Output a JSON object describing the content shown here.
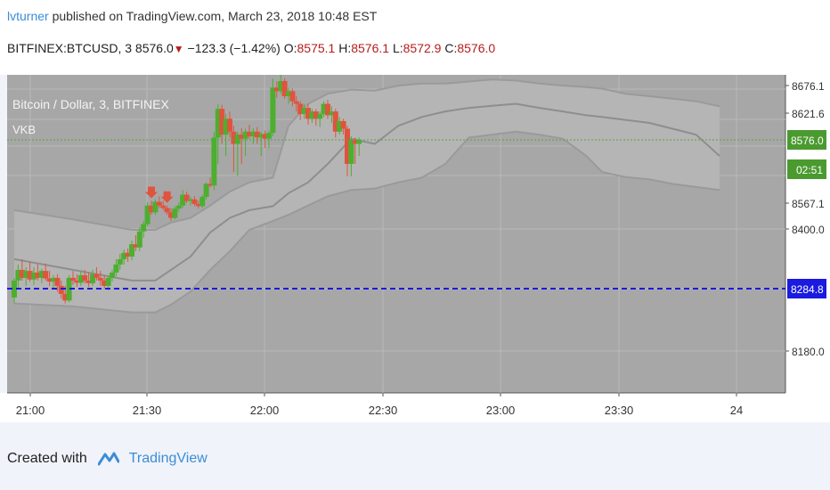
{
  "header": {
    "author": "lvturner",
    "published_text": "published on TradingView.com, March 23, 2018 10:48 EST",
    "symbol": "BITFINEX:BTCUSD, 3",
    "last": "8576.0",
    "change": "−123.3 (−1.42%)",
    "o_label": "O:",
    "o_value": "8575.1",
    "h_label": "H:",
    "h_value": "8576.1",
    "l_label": "L:",
    "l_value": "8572.9",
    "c_label": "C:",
    "c_value": "8576.0"
  },
  "footer": {
    "created_with": "Created with",
    "brand": "TradingView"
  },
  "colors": {
    "up": "#4caf2f",
    "down": "#e0533e",
    "plot_bg": "#a7a7a7",
    "band": "#b5b5b5",
    "blue_line": "#1a1ae0",
    "green_line": "#52a83a"
  },
  "chart_data": {
    "type": "candlestick",
    "title": "Bitcoin / Dollar, 3, BITFINEX",
    "indicator": "VKB",
    "x_ticks": [
      "21:00",
      "21:30",
      "22:00",
      "22:30",
      "23:00",
      "23:30",
      "24"
    ],
    "y_ticks": [
      "8676.1",
      "8621.6",
      "8567.1",
      "8400.0",
      "8180.0"
    ],
    "price_labels": {
      "last_price": "8576.0",
      "countdown": "02:51",
      "hline": "8284.8"
    },
    "hline_value": 8284.8,
    "last_price_value": 8576.0,
    "candles": [
      [
        8270,
        8305,
        8260,
        8300
      ],
      [
        8300,
        8330,
        8285,
        8320
      ],
      [
        8320,
        8340,
        8300,
        8305
      ],
      [
        8305,
        8325,
        8290,
        8318
      ],
      [
        8318,
        8335,
        8298,
        8302
      ],
      [
        8302,
        8325,
        8292,
        8315
      ],
      [
        8315,
        8330,
        8300,
        8305
      ],
      [
        8305,
        8322,
        8295,
        8318
      ],
      [
        8318,
        8332,
        8300,
        8304
      ],
      [
        8304,
        8318,
        8290,
        8298
      ],
      [
        8298,
        8310,
        8285,
        8305
      ],
      [
        8305,
        8312,
        8280,
        8290
      ],
      [
        8290,
        8300,
        8268,
        8276
      ],
      [
        8276,
        8290,
        8260,
        8265
      ],
      [
        8265,
        8310,
        8262,
        8305
      ],
      [
        8305,
        8318,
        8292,
        8300
      ],
      [
        8300,
        8312,
        8288,
        8296
      ],
      [
        8296,
        8318,
        8290,
        8310
      ],
      [
        8310,
        8320,
        8295,
        8300
      ],
      [
        8300,
        8315,
        8288,
        8295
      ],
      [
        8295,
        8320,
        8290,
        8312
      ],
      [
        8312,
        8325,
        8300,
        8305
      ],
      [
        8305,
        8318,
        8290,
        8300
      ],
      [
        8300,
        8310,
        8285,
        8290
      ],
      [
        8290,
        8310,
        8282,
        8305
      ],
      [
        8305,
        8320,
        8298,
        8315
      ],
      [
        8315,
        8340,
        8308,
        8330
      ],
      [
        8330,
        8350,
        8320,
        8340
      ],
      [
        8340,
        8358,
        8330,
        8352
      ],
      [
        8352,
        8360,
        8335,
        8345
      ],
      [
        8345,
        8375,
        8338,
        8368
      ],
      [
        8368,
        8385,
        8355,
        8362
      ],
      [
        8362,
        8400,
        8355,
        8392
      ],
      [
        8392,
        8420,
        8380,
        8410
      ],
      [
        8410,
        8480,
        8402,
        8470
      ],
      [
        8470,
        8485,
        8440,
        8448
      ],
      [
        8448,
        8490,
        8440,
        8482
      ],
      [
        8482,
        8500,
        8462,
        8470
      ],
      [
        8470,
        8485,
        8455,
        8462
      ],
      [
        8462,
        8470,
        8440,
        8448
      ],
      [
        8448,
        8462,
        8420,
        8430
      ],
      [
        8430,
        8468,
        8425,
        8460
      ],
      [
        8460,
        8480,
        8450,
        8470
      ],
      [
        8470,
        8520,
        8462,
        8505
      ],
      [
        8505,
        8515,
        8478,
        8485
      ],
      [
        8485,
        8498,
        8470,
        8490
      ],
      [
        8490,
        8500,
        8468,
        8475
      ],
      [
        8475,
        8486,
        8460,
        8468
      ],
      [
        8468,
        8505,
        8462,
        8498
      ],
      [
        8498,
        8545,
        8490,
        8540
      ],
      [
        8540,
        8560,
        8528,
        8535
      ],
      [
        8535,
        8590,
        8520,
        8580
      ],
      [
        8580,
        8640,
        8570,
        8630
      ],
      [
        8630,
        8638,
        8575,
        8585
      ],
      [
        8585,
        8620,
        8572,
        8612
      ],
      [
        8612,
        8625,
        8580,
        8590
      ],
      [
        8590,
        8600,
        8568,
        8575
      ],
      [
        8575,
        8590,
        8565,
        8585
      ],
      [
        8585,
        8596,
        8570,
        8578
      ],
      [
        8578,
        8595,
        8572,
        8590
      ],
      [
        8590,
        8602,
        8578,
        8582
      ],
      [
        8582,
        8596,
        8575,
        8590
      ],
      [
        8590,
        8598,
        8575,
        8580
      ],
      [
        8580,
        8590,
        8572,
        8586
      ],
      [
        8586,
        8592,
        8574,
        8578
      ],
      [
        8578,
        8592,
        8574,
        8588
      ],
      [
        8588,
        8690,
        8582,
        8672
      ],
      [
        8672,
        8684,
        8652,
        8665
      ],
      [
        8665,
        8700,
        8660,
        8685
      ],
      [
        8685,
        8690,
        8650,
        8655
      ],
      [
        8655,
        8672,
        8640,
        8665
      ],
      [
        8665,
        8670,
        8635,
        8645
      ],
      [
        8645,
        8655,
        8625,
        8640
      ],
      [
        8640,
        8645,
        8610,
        8620
      ],
      [
        8620,
        8640,
        8612,
        8632
      ],
      [
        8632,
        8640,
        8602,
        8612
      ],
      [
        8612,
        8630,
        8605,
        8625
      ],
      [
        8625,
        8630,
        8600,
        8612
      ],
      [
        8612,
        8625,
        8598,
        8620
      ],
      [
        8620,
        8645,
        8615,
        8640
      ],
      [
        8640,
        8648,
        8612,
        8618
      ],
      [
        8618,
        8635,
        8605,
        8625
      ],
      [
        8625,
        8630,
        8580,
        8590
      ],
      [
        8590,
        8615,
        8585,
        8608
      ],
      [
        8608,
        8612,
        8585,
        8595
      ],
      [
        8595,
        8600,
        8565,
        8570
      ],
      [
        8570,
        8582,
        8565,
        8576
      ],
      [
        8576,
        8580,
        8570,
        8575
      ],
      [
        8575,
        8580,
        8572,
        8576
      ]
    ],
    "sell_signals_at": [
      35,
      39
    ],
    "band_upper": [
      [
        0,
        8455
      ],
      [
        15,
        8425
      ],
      [
        30,
        8395
      ],
      [
        36,
        8395
      ],
      [
        40,
        8415
      ],
      [
        45,
        8430
      ],
      [
        50,
        8470
      ],
      [
        55,
        8515
      ],
      [
        60,
        8545
      ],
      [
        66,
        8560
      ],
      [
        70,
        8600
      ],
      [
        75,
        8640
      ],
      [
        80,
        8660
      ],
      [
        86,
        8668
      ],
      [
        92,
        8666
      ],
      [
        98,
        8676
      ],
      [
        104,
        8680
      ],
      [
        110,
        8680
      ],
      [
        116,
        8684
      ],
      [
        122,
        8688
      ],
      [
        128,
        8686
      ],
      [
        134,
        8680
      ],
      [
        140,
        8676
      ],
      [
        146,
        8673
      ],
      [
        150,
        8670
      ],
      [
        156,
        8660
      ],
      [
        162,
        8655
      ],
      [
        168,
        8650
      ],
      [
        174,
        8645
      ],
      [
        180,
        8635
      ]
    ],
    "band_middle": [
      [
        0,
        8340
      ],
      [
        15,
        8320
      ],
      [
        30,
        8300
      ],
      [
        36,
        8300
      ],
      [
        40,
        8320
      ],
      [
        45,
        8345
      ],
      [
        50,
        8390
      ],
      [
        55,
        8430
      ],
      [
        60,
        8455
      ],
      [
        66,
        8468
      ],
      [
        70,
        8510
      ],
      [
        75,
        8545
      ],
      [
        80,
        8570
      ],
      [
        86,
        8578
      ],
      [
        92,
        8575
      ],
      [
        98,
        8600
      ],
      [
        104,
        8615
      ],
      [
        110,
        8625
      ],
      [
        116,
        8632
      ],
      [
        122,
        8636
      ],
      [
        128,
        8640
      ],
      [
        134,
        8632
      ],
      [
        140,
        8625
      ],
      [
        146,
        8618
      ],
      [
        150,
        8615
      ],
      [
        156,
        8610
      ],
      [
        162,
        8605
      ],
      [
        168,
        8595
      ],
      [
        174,
        8585
      ],
      [
        180,
        8572
      ]
    ],
    "band_lower": [
      [
        0,
        8260
      ],
      [
        15,
        8255
      ],
      [
        30,
        8245
      ],
      [
        36,
        8245
      ],
      [
        40,
        8258
      ],
      [
        45,
        8280
      ],
      [
        50,
        8320
      ],
      [
        55,
        8355
      ],
      [
        60,
        8395
      ],
      [
        66,
        8420
      ],
      [
        70,
        8440
      ],
      [
        75,
        8470
      ],
      [
        80,
        8500
      ],
      [
        86,
        8520
      ],
      [
        92,
        8525
      ],
      [
        98,
        8545
      ],
      [
        104,
        8560
      ],
      [
        110,
        8570
      ],
      [
        116,
        8580
      ],
      [
        122,
        8585
      ],
      [
        128,
        8590
      ],
      [
        134,
        8585
      ],
      [
        140,
        8578
      ],
      [
        146,
        8572
      ],
      [
        150,
        8568
      ],
      [
        156,
        8562
      ],
      [
        162,
        8555
      ],
      [
        168,
        8540
      ],
      [
        174,
        8530
      ],
      [
        180,
        8520
      ]
    ]
  }
}
